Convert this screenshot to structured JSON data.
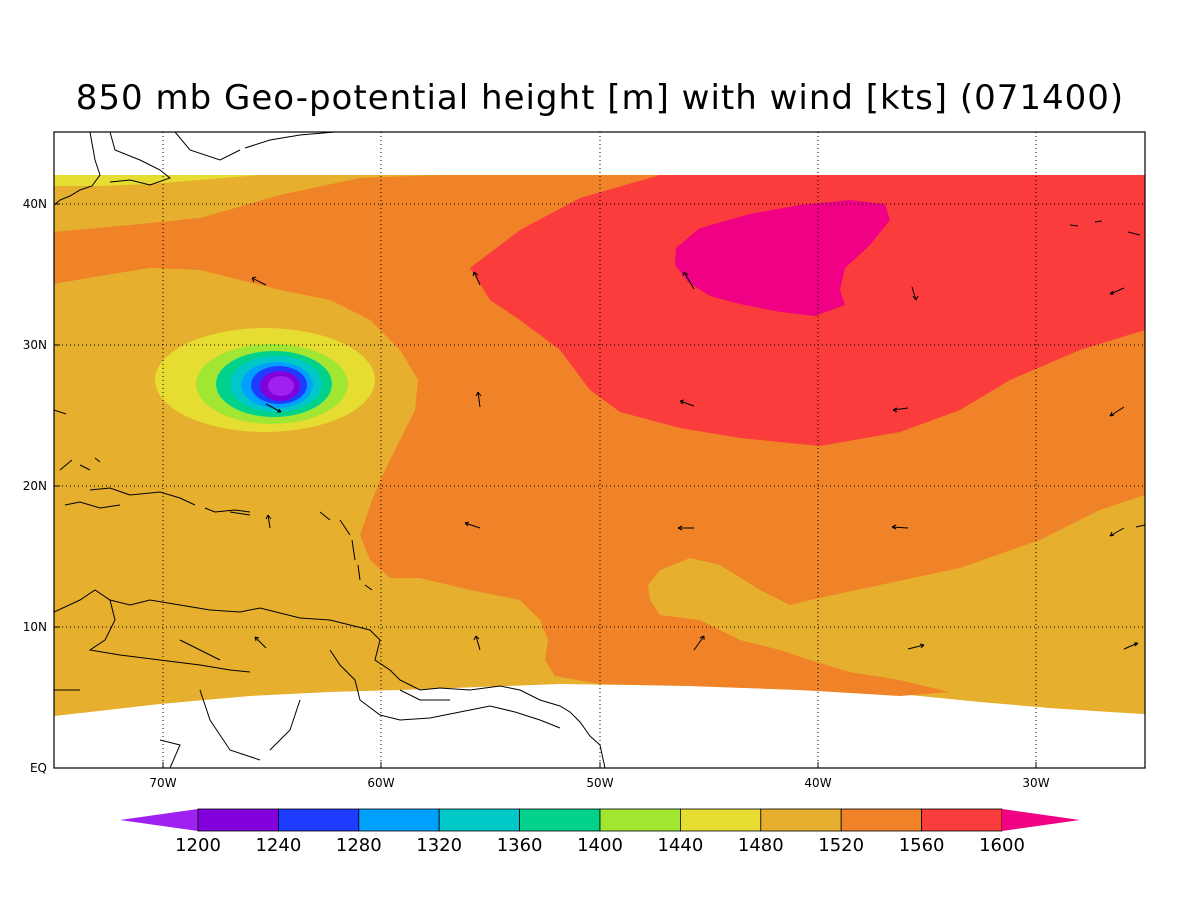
{
  "title": "850 mb Geo-potential height [m] with wind [kts] (071400)",
  "axes": {
    "lon_labels": [
      "70W",
      "60W",
      "50W",
      "40W",
      "30W"
    ],
    "lat_labels": [
      "EQ",
      "10N",
      "20N",
      "30N",
      "40N"
    ]
  },
  "colorbar": {
    "levels": [
      "1200",
      "1240",
      "1280",
      "1320",
      "1360",
      "1400",
      "1440",
      "1480",
      "1520",
      "1560",
      "1600"
    ],
    "colors": [
      "#a020f0",
      "#8200dc",
      "#1e3cff",
      "#00a0ff",
      "#00c8c8",
      "#00d28c",
      "#a0e632",
      "#e6dc32",
      "#e6af2d",
      "#f08228",
      "#fa3c3c",
      "#f00082"
    ]
  },
  "map": {
    "background_color": "#e6af2d",
    "grid": "dotted",
    "features": [
      "tropical low near 27N 65W",
      "subtropical high near 37N 43W"
    ]
  }
}
